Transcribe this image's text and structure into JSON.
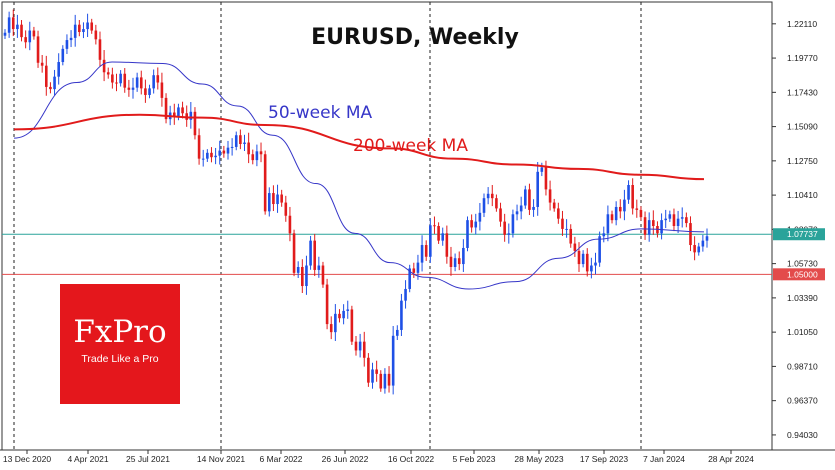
{
  "chart_data": {
    "type": "candlestick",
    "title": "EURUSD, Weekly",
    "x_tick_labels": [
      "13 Dec 2020",
      "4 Apr 2021",
      "25 Jul 2021",
      "14 Nov 2021",
      "6 Mar 2022",
      "26 Jun 2022",
      "16 Oct 2022",
      "5 Feb 2023",
      "28 May 2023",
      "17 Sep 2023",
      "7 Jan 2024",
      "28 Apr 2024"
    ],
    "y_tick_labels": [
      "1.22110",
      "1.19770",
      "1.17430",
      "1.15090",
      "1.12750",
      "1.10410",
      "1.08070",
      "1.05730",
      "1.03390",
      "1.01050",
      "0.98710",
      "0.96370",
      "0.94030"
    ],
    "ylim": [
      0.93,
      1.236
    ],
    "series": [
      {
        "name": "50-week MA",
        "color": "#3636c8",
        "points": [
          [
            "2020-12-13",
            1.143
          ],
          [
            "2021-04-04",
            1.181
          ],
          [
            "2021-06-06",
            1.195
          ],
          [
            "2021-09-05",
            1.194
          ],
          [
            "2021-11-14",
            1.18
          ],
          [
            "2022-01-16",
            1.165
          ],
          [
            "2022-03-20",
            1.145
          ],
          [
            "2022-06-05",
            1.112
          ],
          [
            "2022-08-14",
            1.078
          ],
          [
            "2022-10-16",
            1.058
          ],
          [
            "2022-12-18",
            1.048
          ],
          [
            "2023-03-05",
            1.04
          ],
          [
            "2023-05-28",
            1.045
          ],
          [
            "2023-08-13",
            1.061
          ],
          [
            "2023-10-22",
            1.074
          ],
          [
            "2024-01-07",
            1.081
          ],
          [
            "2024-04-28",
            1.079
          ]
        ]
      },
      {
        "name": "200-week MA",
        "color": "#e11b1b",
        "points": [
          [
            "2020-12-13",
            1.149
          ],
          [
            "2021-07-25",
            1.159
          ],
          [
            "2021-11-14",
            1.157
          ],
          [
            "2022-03-06",
            1.152
          ],
          [
            "2022-10-16",
            1.136
          ],
          [
            "2023-02-05",
            1.129
          ],
          [
            "2023-05-28",
            1.125
          ],
          [
            "2023-09-17",
            1.122
          ],
          [
            "2024-01-07",
            1.118
          ],
          [
            "2024-04-28",
            1.115
          ]
        ]
      }
    ],
    "horizontal_lines": [
      {
        "value": 1.07737,
        "label": "1.07737",
        "color": "#2aa39a"
      },
      {
        "value": 1.05,
        "label": "1.05000",
        "color": "#e34b4b"
      }
    ],
    "candles_close": [
      1.215,
      1.2255,
      1.2175,
      1.2205,
      1.212,
      1.2085,
      1.2165,
      1.2125,
      1.1945,
      1.1925,
      1.178,
      1.1765,
      1.185,
      1.195,
      1.204,
      1.21,
      1.2115,
      1.2205,
      1.2155,
      1.2175,
      1.222,
      1.2165,
      1.2105,
      1.1965,
      1.188,
      1.1865,
      1.181,
      1.1805,
      1.187,
      1.1775,
      1.176,
      1.1775,
      1.1845,
      1.177,
      1.1725,
      1.177,
      1.186,
      1.181,
      1.1705,
      1.156,
      1.1605,
      1.1575,
      1.164,
      1.16,
      1.1555,
      1.161,
      1.145,
      1.129,
      1.129,
      1.133,
      1.13,
      1.131,
      1.1345,
      1.1325,
      1.1365,
      1.137,
      1.145,
      1.139,
      1.14,
      1.132,
      1.128,
      1.134,
      1.132,
      1.093,
      1.1055,
      1.098,
      1.1045,
      1.099,
      1.09,
      1.078,
      1.051,
      1.055,
      1.042,
      1.056,
      1.073,
      1.053,
      1.056,
      1.043,
      1.016,
      1.0105,
      1.023,
      1.02,
      1.025,
      1.026,
      1.004,
      0.998,
      1.004,
      0.993,
      0.976,
      0.985,
      0.982,
      0.972,
      0.982,
      0.974,
      1.008,
      1.012,
      1.032,
      1.04,
      1.054,
      1.051,
      1.058,
      1.07,
      1.062,
      1.0835,
      1.083,
      1.073,
      1.078,
      1.062,
      1.055,
      1.061,
      1.057,
      1.068,
      1.087,
      1.082,
      1.086,
      1.092,
      1.102,
      1.105,
      1.102,
      1.095,
      1.086,
      1.077,
      1.078,
      1.091,
      1.093,
      1.097,
      1.108,
      1.094,
      1.096,
      1.12,
      1.123,
      1.108,
      1.099,
      1.095,
      1.088,
      1.081,
      1.081,
      1.071,
      1.066,
      1.057,
      1.064,
      1.052,
      1.056,
      1.058,
      1.076,
      1.078,
      1.091,
      1.087,
      1.096,
      1.093,
      1.101,
      1.111,
      1.095,
      1.094,
      1.089,
      1.077,
      1.087,
      1.083,
      1.078,
      1.087,
      1.088,
      1.091,
      1.083,
      1.088,
      1.089,
      1.085,
      1.07,
      1.065,
      1.069,
      1.073,
      1.076
    ],
    "last_price": 1.07737
  },
  "brand": {
    "name": "FxPro",
    "tagline": "Trade Like a Pro",
    "color": "#e4171c"
  }
}
